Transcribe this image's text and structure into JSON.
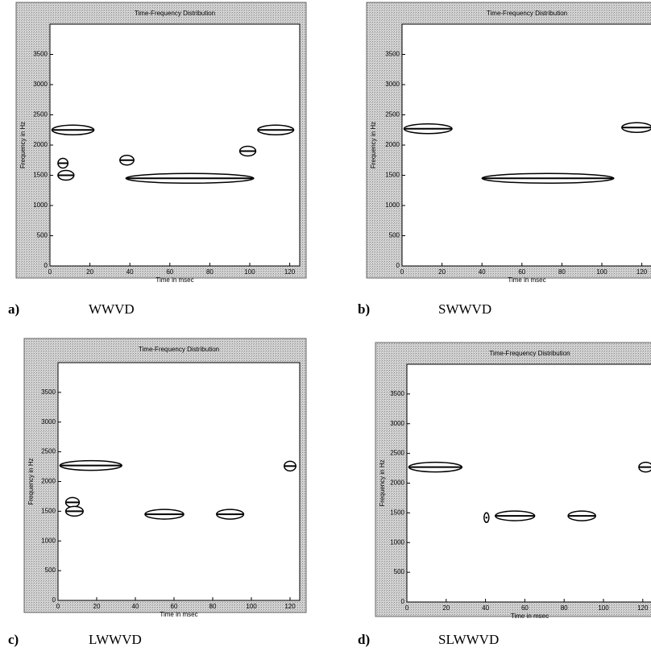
{
  "chart_data": [
    {
      "type": "contour",
      "panel": "a)",
      "caption": "WWVD",
      "title": "Time-Frequency Distribution",
      "xlabel": "Time in msec",
      "ylabel": "Frequency in Hz",
      "xlim": [
        0,
        125
      ],
      "ylim": [
        0,
        4000
      ],
      "xticks": [
        0,
        20,
        40,
        60,
        80,
        100,
        120
      ],
      "yticks": [
        0,
        500,
        1000,
        1500,
        2000,
        2500,
        3000,
        3500
      ],
      "segments": [
        [
          1,
          22,
          2250
        ],
        [
          4,
          9,
          1700
        ],
        [
          4,
          12,
          1500
        ],
        [
          35,
          42,
          1750
        ],
        [
          38,
          102,
          1450
        ],
        [
          95,
          103,
          1900
        ],
        [
          104,
          122,
          2250
        ]
      ]
    },
    {
      "type": "contour",
      "panel": "b)",
      "caption": "SWWVD",
      "title": "Time-Frequency Distribution",
      "xlabel": "Time in msec",
      "ylabel": "Frequency in Hz",
      "xlim": [
        0,
        125
      ],
      "ylim": [
        0,
        4000
      ],
      "xticks": [
        0,
        20,
        40,
        60,
        80,
        100,
        120
      ],
      "yticks": [
        0,
        500,
        1000,
        1500,
        2000,
        2500,
        3000,
        3500
      ],
      "segments": [
        [
          1,
          25,
          2270
        ],
        [
          40,
          106,
          1450
        ],
        [
          110,
          125,
          2290
        ]
      ]
    },
    {
      "type": "contour",
      "panel": "c)",
      "caption": "LWWVD",
      "title": "Time-Frequency Distribution",
      "xlabel": "Time in msec",
      "ylabel": "Frequency in Hz",
      "xlim": [
        0,
        125
      ],
      "ylim": [
        0,
        4000
      ],
      "xticks": [
        0,
        20,
        40,
        60,
        80,
        100,
        120
      ],
      "yticks": [
        0,
        500,
        1000,
        1500,
        2000,
        2500,
        3000,
        3500
      ],
      "segments": [
        [
          1,
          33,
          2270
        ],
        [
          4,
          11,
          1650
        ],
        [
          4,
          13,
          1500
        ],
        [
          45,
          65,
          1450
        ],
        [
          82,
          96,
          1450
        ],
        [
          117,
          123,
          2260
        ]
      ]
    },
    {
      "type": "contour",
      "panel": "d)",
      "caption": "SLWWVD",
      "title": "Time-Frequency Distribution",
      "xlabel": "Time in msec",
      "ylabel": "Frequency in Hz",
      "xlim": [
        0,
        125
      ],
      "ylim": [
        0,
        4000
      ],
      "xticks": [
        0,
        20,
        40,
        60,
        80,
        100,
        120
      ],
      "yticks": [
        0,
        500,
        1000,
        1500,
        2000,
        2500,
        3000,
        3500
      ],
      "segments": [
        [
          1,
          28,
          2270
        ],
        [
          40,
          41,
          1420
        ],
        [
          45,
          65,
          1450
        ],
        [
          82,
          96,
          1450
        ],
        [
          118,
          125,
          2270
        ]
      ]
    }
  ]
}
